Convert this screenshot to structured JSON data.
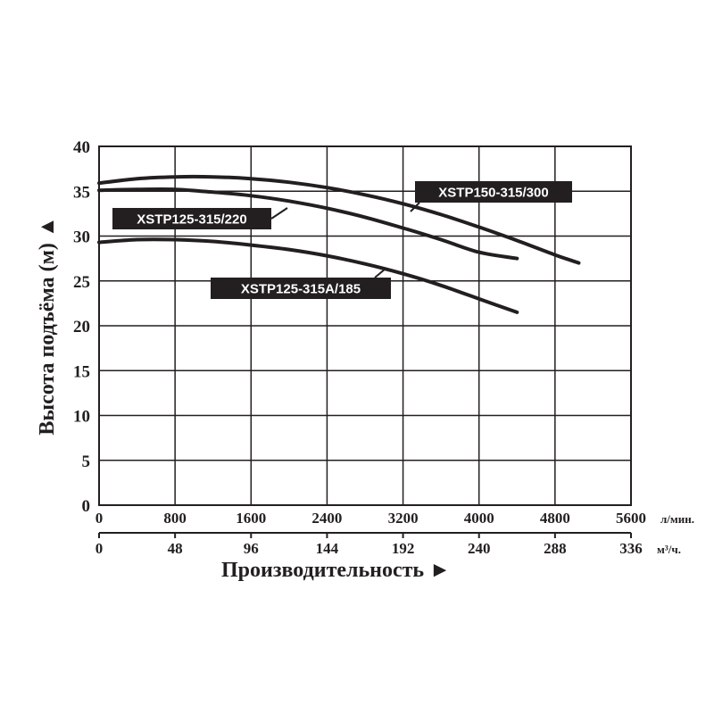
{
  "chart_data": {
    "type": "line",
    "ylabel": "Высота подъёма (м) ▲",
    "xlabel": "Производительность ►",
    "x_unit": "л/мин.",
    "x2_unit": "м³/ч.",
    "xlim": [
      0,
      5600
    ],
    "ylim": [
      0,
      40
    ],
    "x_ticks": [
      "0",
      "800",
      "1600",
      "2400",
      "3200",
      "4000",
      "4800",
      "5600"
    ],
    "x2_ticks": [
      "0",
      "48",
      "96",
      "144",
      "192",
      "240",
      "288",
      "336"
    ],
    "y_ticks": [
      "0",
      "5",
      "10",
      "15",
      "20",
      "25",
      "30",
      "35",
      "40"
    ],
    "grid": true,
    "series": [
      {
        "name": "XSTP150-315/300",
        "x": [
          0,
          400,
          800,
          1200,
          1600,
          2000,
          2400,
          2800,
          3200,
          3600,
          4000,
          4400,
          4800,
          5050
        ],
        "y": [
          35.9,
          36.4,
          36.6,
          36.6,
          36.4,
          36.0,
          35.4,
          34.6,
          33.6,
          32.4,
          31.0,
          29.5,
          27.9,
          27.0
        ]
      },
      {
        "name": "XSTP125-315/220",
        "x": [
          0,
          400,
          800,
          1200,
          1600,
          2000,
          2400,
          2800,
          3200,
          3600,
          4000,
          4400
        ],
        "y": [
          35.1,
          35.2,
          35.2,
          34.9,
          34.5,
          33.9,
          33.1,
          32.1,
          30.9,
          29.6,
          28.2,
          27.5
        ]
      },
      {
        "name": "XSTP125-315A/185",
        "x": [
          0,
          400,
          800,
          1200,
          1600,
          2000,
          2400,
          2800,
          3200,
          3600,
          4000,
          4400
        ],
        "y": [
          29.3,
          29.6,
          29.6,
          29.4,
          29.0,
          28.5,
          27.8,
          26.9,
          25.8,
          24.5,
          23.0,
          21.5
        ]
      }
    ],
    "colors": {
      "line": "#231f20",
      "grid": "#231f20",
      "label_bg": "#231f20",
      "label_text": "#ffffff"
    }
  }
}
